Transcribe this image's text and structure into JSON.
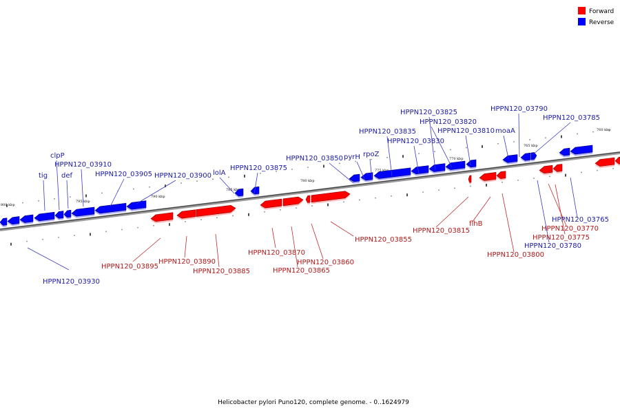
{
  "caption": "Helicobacter pylori Puno120, complete genome. - 0..1624979",
  "legend": {
    "forward": {
      "label": "Forward",
      "color": "#ff0000"
    },
    "reverse": {
      "label": "Reverse",
      "color": "#0000ff"
    }
  },
  "genome_scale": {
    "kbp_labels": [
      "800 kbp",
      "795 kbp",
      "790 kbp",
      "785 kbp",
      "780 kbp",
      "775 kbp",
      "770 kbp",
      "765 kbp",
      "760 kbp"
    ]
  },
  "reverse_genes": [
    {
      "name": "HPPN120_03930"
    },
    {
      "name": "tig"
    },
    {
      "name": "clpP"
    },
    {
      "name": "HPPN120_03910"
    },
    {
      "name": "def"
    },
    {
      "name": "HPPN120_03905"
    },
    {
      "name": "HPPN120_03900"
    },
    {
      "name": "lolA"
    },
    {
      "name": "HPPN120_03875"
    },
    {
      "name": "HPPN120_03850"
    },
    {
      "name": "pyrH"
    },
    {
      "name": "rpoZ"
    },
    {
      "name": "HPPN120_03835"
    },
    {
      "name": "HPPN120_03830"
    },
    {
      "name": "HPPN120_03825"
    },
    {
      "name": "HPPN120_03820"
    },
    {
      "name": "HPPN120_03810"
    },
    {
      "name": "moaA"
    },
    {
      "name": "HPPN120_03790"
    },
    {
      "name": "HPPN120_03785"
    },
    {
      "name": "HPPN120_03780"
    },
    {
      "name": "HPPN120_03765"
    }
  ],
  "forward_genes": [
    {
      "name": "HPPN120_03895"
    },
    {
      "name": "HPPN120_03890"
    },
    {
      "name": "HPPN120_03885"
    },
    {
      "name": "HPPN120_03870"
    },
    {
      "name": "HPPN120_03865"
    },
    {
      "name": "HPPN120_03860"
    },
    {
      "name": "HPPN120_03855"
    },
    {
      "name": "HPPN120_03815"
    },
    {
      "name": "flhB"
    },
    {
      "name": "HPPN120_03800"
    },
    {
      "name": "HPPN120_03775"
    },
    {
      "name": "HPPN120_03770"
    }
  ]
}
